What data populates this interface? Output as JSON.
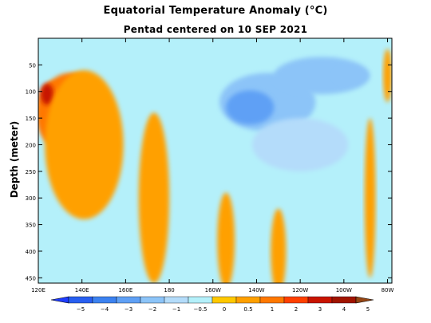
{
  "chart_data": {
    "type": "heatmap",
    "title": "Equatorial Temperature Anomaly (°C)",
    "subtitle": "Pentad centered on 10 SEP 2021",
    "ylabel": "Depth (meter)",
    "xlabel": "",
    "x_ticks": [
      "120E",
      "140E",
      "160E",
      "180",
      "160W",
      "140W",
      "120W",
      "100W",
      "80W"
    ],
    "x_tick_lon": [
      120,
      140,
      160,
      180,
      200,
      220,
      240,
      260,
      280
    ],
    "xlim_lon": [
      120,
      282
    ],
    "y_ticks": [
      50,
      100,
      150,
      200,
      250,
      300,
      350,
      400,
      450
    ],
    "ylim_depth": [
      0,
      460
    ],
    "colorbar": {
      "labels": [
        "−5",
        "−4",
        "−3",
        "−2",
        "−1",
        "−0.5",
        "0",
        "0.5",
        "1",
        "2",
        "3",
        "4",
        "5"
      ],
      "levels": [
        -5,
        -4,
        -3,
        -2,
        -1,
        -0.5,
        0,
        0.5,
        1,
        2,
        3,
        4,
        5
      ],
      "colors": [
        "#1e3cff",
        "#285ff0",
        "#3c82f0",
        "#5fa0f5",
        "#8cc4f8",
        "#b4dcfa",
        "#b4f0fa",
        "#ffc800",
        "#ffa000",
        "#ff7800",
        "#ff4000",
        "#c81400",
        "#a01400",
        "#964614"
      ],
      "extend": "both"
    },
    "features": [
      {
        "anomaly": 1.5,
        "lon": 127,
        "depth": 140,
        "rx": 8,
        "ry": 60
      },
      {
        "anomaly": 1.2,
        "lon": 135,
        "depth": 110,
        "rx": 12,
        "ry": 45
      },
      {
        "anomaly": 3.0,
        "lon": 124,
        "depth": 105,
        "rx": 3,
        "ry": 20
      },
      {
        "anomaly": 3.0,
        "lon": 137,
        "depth": 145,
        "rx": 2,
        "ry": 12
      },
      {
        "anomaly": 2.5,
        "lon": 144,
        "depth": 125,
        "rx": 2.5,
        "ry": 8
      },
      {
        "anomaly": 0.6,
        "lon": 141,
        "depth": 200,
        "rx": 18,
        "ry": 140
      },
      {
        "anomaly": 0.6,
        "lon": 173,
        "depth": 300,
        "rx": 7,
        "ry": 160
      },
      {
        "anomaly": 0.6,
        "lon": 206,
        "depth": 380,
        "rx": 4,
        "ry": 90
      },
      {
        "anomaly": 0.6,
        "lon": 230,
        "depth": 400,
        "rx": 3.5,
        "ry": 80
      },
      {
        "anomaly": 0.6,
        "lon": 272,
        "depth": 300,
        "rx": 2.5,
        "ry": 150
      },
      {
        "anomaly": 0.6,
        "lon": 280,
        "depth": 70,
        "rx": 2,
        "ry": 50
      },
      {
        "anomaly": -1.5,
        "lon": 225,
        "depth": 120,
        "rx": 22,
        "ry": 55
      },
      {
        "anomaly": -2.5,
        "lon": 217,
        "depth": 130,
        "rx": 11,
        "ry": 32
      },
      {
        "anomaly": -1.2,
        "lon": 250,
        "depth": 70,
        "rx": 22,
        "ry": 35
      },
      {
        "anomaly": -2.0,
        "lon": 263,
        "depth": 70,
        "rx": 7,
        "ry": 15
      },
      {
        "anomaly": -0.6,
        "lon": 240,
        "depth": 200,
        "rx": 22,
        "ry": 50
      }
    ]
  }
}
